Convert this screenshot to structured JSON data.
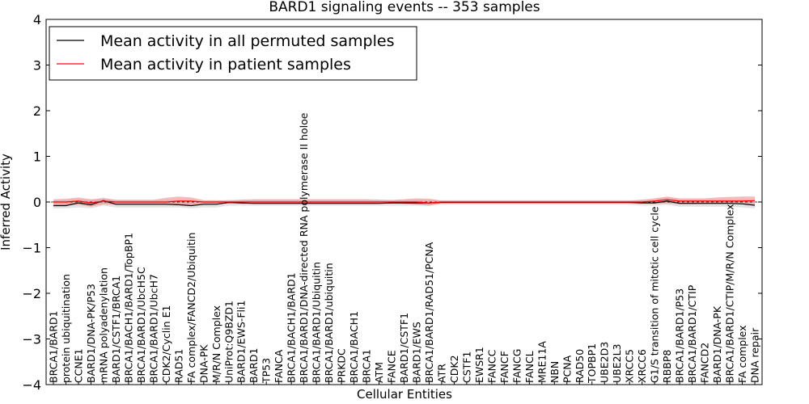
{
  "chart_data": {
    "type": "line",
    "title": "BARD1 signaling events -- 353 samples",
    "xlabel": "Cellular Entities",
    "ylabel": "Inferred Activity",
    "ylim": [
      -4,
      4
    ],
    "yticks": [
      4,
      3,
      2,
      1,
      0,
      -1,
      -2,
      -3,
      -4
    ],
    "ytick_labels": [
      "4",
      "3",
      "2",
      "1",
      "0",
      "−1",
      "−2",
      "−3",
      "−4"
    ],
    "legend_position": "top-left",
    "categories": [
      "BRCA1/BARD1",
      "protein ubiquitination",
      "CCNE1",
      "BARD1/DNA-PK/P53",
      "mRNA polyadenylation",
      "BARD1/CSTF1/BRCA1",
      "BRCA1/BACH1/BARD1/TopBP1",
      "BRCA1/BARD1/UbcH5C",
      "BRCA1/BARD1/UbcH7",
      "CDK2/Cyclin E1",
      "RAD51",
      "FA complex/FANCD2/Ubiquitin",
      "DNA-PK",
      "M/R/N Complex",
      "UniProt:Q9BZD1",
      "BARD1/EWS-Fli1",
      "BARD1",
      "TP53",
      "FANCA",
      "BRCA1/BACH1/BARD1",
      "BRCA1/BARD1/DNA-directed RNA polymerase II holoe",
      "BRCA1/BARD1/Ubiquitin",
      "BRCA1/BARD1/ubiquitin",
      "PRKDC",
      "BRCA1/BACH1",
      "BRCA1",
      "ATM",
      "FANCE",
      "BARD1/CSTF1",
      "BARD1/EWS",
      "BRCA1/BARD1/RAD51/PCNA",
      "ATR",
      "CDK2",
      "CSTF1",
      "EWSR1",
      "FANCC",
      "FANCF",
      "FANCG",
      "FANCL",
      "MRE11A",
      "NBN",
      "PCNA",
      "RAD50",
      "TOPBP1",
      "UBE2D3",
      "UBE2L3",
      "XRCC5",
      "XRCC6",
      "G1/S transition of mitotic cell cycle",
      "RBBP8",
      "BRCA1/BARD1/P53",
      "BRCA1/BARD1/CTIP",
      "FANCD2",
      "BARD1/DNA-PK",
      "BRCA1/BARD1/CTIP/M/R/N Complex",
      "FA complex",
      "DNA repair"
    ],
    "series": [
      {
        "name": "Mean activity in all permuted samples",
        "color": "#000000",
        "values": [
          -0.08,
          -0.08,
          -0.02,
          -0.06,
          0.03,
          -0.05,
          -0.05,
          -0.05,
          -0.05,
          -0.05,
          -0.06,
          -0.08,
          -0.05,
          -0.05,
          -0.01,
          -0.02,
          -0.03,
          -0.03,
          -0.03,
          -0.03,
          -0.03,
          -0.03,
          -0.03,
          -0.03,
          -0.03,
          -0.03,
          -0.03,
          -0.02,
          -0.02,
          -0.02,
          -0.02,
          -0.01,
          -0.01,
          -0.01,
          -0.01,
          -0.01,
          -0.01,
          -0.01,
          -0.01,
          -0.01,
          -0.01,
          -0.01,
          -0.01,
          -0.01,
          -0.01,
          -0.01,
          -0.01,
          -0.02,
          -0.02,
          0.02,
          -0.03,
          -0.03,
          -0.03,
          -0.03,
          -0.03,
          -0.04,
          -0.07
        ],
        "band_low": [
          -0.14,
          -0.14,
          -0.12,
          -0.14,
          -0.08,
          -0.12,
          -0.12,
          -0.12,
          -0.12,
          -0.12,
          -0.12,
          -0.14,
          -0.12,
          -0.12,
          -0.08,
          -0.08,
          -0.08,
          -0.08,
          -0.08,
          -0.08,
          -0.08,
          -0.08,
          -0.08,
          -0.08,
          -0.08,
          -0.08,
          -0.08,
          -0.08,
          -0.08,
          -0.08,
          -0.08,
          -0.06,
          -0.06,
          -0.06,
          -0.06,
          -0.06,
          -0.06,
          -0.06,
          -0.06,
          -0.06,
          -0.06,
          -0.06,
          -0.06,
          -0.06,
          -0.06,
          -0.06,
          -0.06,
          -0.08,
          -0.08,
          -0.06,
          -0.1,
          -0.1,
          -0.1,
          -0.1,
          -0.1,
          -0.12,
          -0.14
        ],
        "band_high": [
          0.04,
          0.04,
          0.06,
          0.04,
          0.1,
          0.04,
          0.04,
          0.04,
          0.04,
          0.04,
          0.04,
          0.02,
          0.03,
          0.03,
          0.05,
          0.05,
          0.05,
          0.05,
          0.05,
          0.05,
          0.05,
          0.05,
          0.05,
          0.05,
          0.05,
          0.05,
          0.05,
          0.05,
          0.05,
          0.05,
          0.05,
          0.04,
          0.04,
          0.04,
          0.04,
          0.04,
          0.04,
          0.04,
          0.04,
          0.04,
          0.04,
          0.04,
          0.04,
          0.04,
          0.04,
          0.04,
          0.04,
          0.05,
          0.05,
          0.1,
          0.05,
          0.05,
          0.05,
          0.05,
          0.05,
          0.05,
          0.04
        ]
      },
      {
        "name": "Mean activity in patient samples",
        "color": "#ff0000",
        "values": [
          0.0,
          0.0,
          0.02,
          -0.02,
          0.02,
          0.0,
          0.0,
          0.0,
          0.0,
          0.0,
          0.02,
          0.02,
          0.0,
          0.0,
          0.0,
          0.0,
          0.0,
          0.0,
          0.0,
          0.0,
          0.0,
          0.0,
          0.0,
          0.0,
          0.0,
          0.0,
          0.0,
          0.0,
          0.0,
          0.0,
          -0.02,
          0.0,
          0.0,
          0.0,
          0.0,
          0.0,
          0.0,
          0.0,
          0.0,
          0.0,
          0.0,
          0.0,
          0.0,
          0.0,
          0.0,
          0.0,
          0.0,
          0.0,
          0.02,
          0.05,
          0.02,
          0.02,
          0.02,
          0.02,
          0.02,
          0.02,
          0.03
        ],
        "band_low": [
          -0.08,
          -0.08,
          -0.06,
          -0.1,
          -0.05,
          -0.06,
          -0.06,
          -0.06,
          -0.06,
          -0.06,
          -0.06,
          -0.06,
          -0.04,
          -0.04,
          -0.02,
          -0.04,
          -0.04,
          -0.04,
          -0.04,
          -0.04,
          -0.04,
          -0.04,
          -0.04,
          -0.04,
          -0.04,
          -0.04,
          -0.04,
          -0.03,
          -0.04,
          -0.06,
          -0.08,
          -0.02,
          -0.02,
          -0.02,
          -0.02,
          -0.02,
          -0.02,
          -0.02,
          -0.02,
          -0.02,
          -0.02,
          -0.02,
          -0.02,
          -0.02,
          -0.02,
          -0.02,
          -0.02,
          -0.03,
          -0.04,
          -0.03,
          -0.05,
          -0.05,
          -0.04,
          -0.04,
          -0.04,
          -0.04,
          -0.05
        ],
        "band_high": [
          0.06,
          0.07,
          0.1,
          0.06,
          0.08,
          0.05,
          0.05,
          0.05,
          0.05,
          0.09,
          0.12,
          0.1,
          0.04,
          0.04,
          0.03,
          0.05,
          0.06,
          0.06,
          0.06,
          0.06,
          0.06,
          0.06,
          0.06,
          0.06,
          0.06,
          0.06,
          0.05,
          0.04,
          0.06,
          0.08,
          0.07,
          0.03,
          0.03,
          0.03,
          0.03,
          0.03,
          0.03,
          0.03,
          0.03,
          0.03,
          0.03,
          0.03,
          0.03,
          0.03,
          0.03,
          0.03,
          0.03,
          0.05,
          0.08,
          0.12,
          0.08,
          0.08,
          0.08,
          0.1,
          0.11,
          0.12,
          0.12
        ]
      }
    ],
    "colors": {
      "permuted_band": "#cccccc",
      "patient_band": "#f08080",
      "zero_line": "#000000"
    }
  }
}
